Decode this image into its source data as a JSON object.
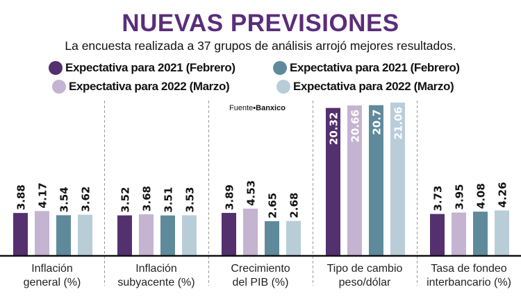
{
  "chart_data": {
    "type": "bar",
    "title": "NUEVAS PREVISIONES",
    "subtitle": "La encuesta realizada a 37 grupos de análisis arrojó mejores resultados.",
    "source_label": "Fuente",
    "source": "Banxico",
    "categories": [
      [
        "Inflación",
        "general (%)"
      ],
      [
        "Inflación",
        "subyacente (%)"
      ],
      [
        "Crecimiento",
        "del PIB (%)"
      ],
      [
        "Tipo de cambio",
        "peso/dólar"
      ],
      [
        "Tasa de fondeo",
        "interbancario (%)"
      ]
    ],
    "series": [
      {
        "name": "Expectativa para 2021 (Febrero)",
        "color": "#54306f",
        "values": [
          3.88,
          3.52,
          3.89,
          20.32,
          3.73
        ]
      },
      {
        "name": "Expectativa para 2022 (Marzo)",
        "color": "#c4b3d1",
        "values": [
          4.17,
          3.68,
          4.53,
          20.66,
          3.95
        ]
      },
      {
        "name": "Expectativa para 2021 (Febrero)",
        "color": "#5f8a9c",
        "values": [
          3.54,
          3.51,
          2.65,
          20.7,
          4.08
        ]
      },
      {
        "name": "Expectativa para 2022 (Marzo)",
        "color": "#b9cdd9",
        "values": [
          3.62,
          3.53,
          2.68,
          21.06,
          4.26
        ]
      }
    ],
    "value_labels": [
      [
        "3.88",
        "4.17",
        "3.54",
        "3.62"
      ],
      [
        "3.52",
        "3.68",
        "3.51",
        "3.53"
      ],
      [
        "3.89",
        "4.53",
        "2.65",
        "2.68"
      ],
      [
        "20.32",
        "20.66",
        "20.7",
        "21.06"
      ],
      [
        "3.73",
        "3.95",
        "4.08",
        "4.26"
      ]
    ],
    "legend": "top",
    "grid": false,
    "title_color": "#5a2d7a"
  }
}
